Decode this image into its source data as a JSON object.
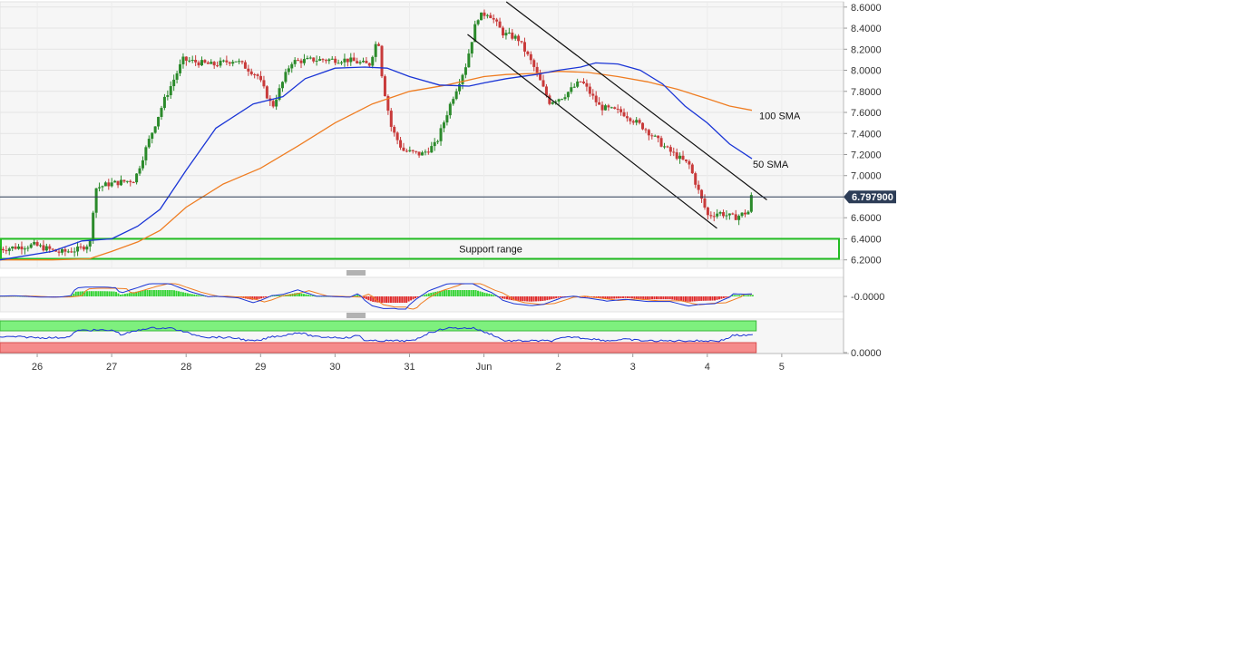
{
  "chart_data": {
    "type": "candlestick",
    "x_axis": {
      "tick_labels": [
        "26",
        "27",
        "28",
        "29",
        "30",
        "31",
        "Jun",
        "2",
        "3",
        "4",
        "5"
      ],
      "tick_day_positions": [
        0,
        1,
        2,
        3,
        4,
        5,
        6,
        7,
        8,
        9,
        10
      ],
      "range_days": [
        -0.5,
        10.83
      ]
    },
    "price_axis": {
      "range": [
        6.12,
        8.65
      ],
      "tick_labels": [
        "8.6000",
        "8.4000",
        "8.2000",
        "8.0000",
        "7.8000",
        "7.6000",
        "7.4000",
        "7.2000",
        "7.0000",
        "6.8000",
        "6.6000",
        "6.4000",
        "6.2000"
      ],
      "tick_values": [
        8.6,
        8.4,
        8.2,
        8.0,
        7.8,
        7.6,
        7.4,
        7.2,
        7.0,
        6.8,
        6.6,
        6.4,
        6.2
      ]
    },
    "current_price": {
      "label": "6.797900",
      "value": 6.7979
    },
    "price_anchors": [
      [
        -0.5,
        6.3
      ],
      [
        0.0,
        6.34
      ],
      [
        0.35,
        6.27
      ],
      [
        0.6,
        6.3
      ],
      [
        0.75,
        6.36
      ],
      [
        0.82,
        6.88
      ],
      [
        1.0,
        6.92
      ],
      [
        1.35,
        6.96
      ],
      [
        1.55,
        7.35
      ],
      [
        1.75,
        7.72
      ],
      [
        2.0,
        8.1
      ],
      [
        2.4,
        8.05
      ],
      [
        2.7,
        8.1
      ],
      [
        3.0,
        7.95
      ],
      [
        3.2,
        7.65
      ],
      [
        3.45,
        8.08
      ],
      [
        3.75,
        8.1
      ],
      [
        4.2,
        8.1
      ],
      [
        4.5,
        8.05
      ],
      [
        4.62,
        8.32
      ],
      [
        4.68,
        7.9
      ],
      [
        4.8,
        7.45
      ],
      [
        4.95,
        7.24
      ],
      [
        5.2,
        7.2
      ],
      [
        5.4,
        7.3
      ],
      [
        5.6,
        7.7
      ],
      [
        5.8,
        8.05
      ],
      [
        5.95,
        8.5
      ],
      [
        6.1,
        8.55
      ],
      [
        6.3,
        8.35
      ],
      [
        6.5,
        8.3
      ],
      [
        6.7,
        8.05
      ],
      [
        6.92,
        7.7
      ],
      [
        7.1,
        7.75
      ],
      [
        7.35,
        7.9
      ],
      [
        7.6,
        7.65
      ],
      [
        7.9,
        7.6
      ],
      [
        8.2,
        7.45
      ],
      [
        8.5,
        7.25
      ],
      [
        8.8,
        7.1
      ],
      [
        8.95,
        6.8
      ],
      [
        9.05,
        6.62
      ],
      [
        9.2,
        6.65
      ],
      [
        9.4,
        6.6
      ],
      [
        9.6,
        6.66
      ],
      [
        9.62,
        6.8
      ]
    ],
    "sma_50": {
      "label": "50 SMA",
      "color": "#1a35d6",
      "points": [
        [
          -0.5,
          6.2
        ],
        [
          0.2,
          6.28
        ],
        [
          0.6,
          6.38
        ],
        [
          1.0,
          6.4
        ],
        [
          1.35,
          6.52
        ],
        [
          1.65,
          6.68
        ],
        [
          2.0,
          7.05
        ],
        [
          2.4,
          7.45
        ],
        [
          2.9,
          7.68
        ],
        [
          3.3,
          7.75
        ],
        [
          3.6,
          7.92
        ],
        [
          4.0,
          8.02
        ],
        [
          4.4,
          8.03
        ],
        [
          4.7,
          8.02
        ],
        [
          5.0,
          7.94
        ],
        [
          5.4,
          7.86
        ],
        [
          5.8,
          7.85
        ],
        [
          6.0,
          7.88
        ],
        [
          6.3,
          7.92
        ],
        [
          6.7,
          7.96
        ],
        [
          7.0,
          8.0
        ],
        [
          7.3,
          8.03
        ],
        [
          7.5,
          8.07
        ],
        [
          7.8,
          8.06
        ],
        [
          8.1,
          8.0
        ],
        [
          8.4,
          7.87
        ],
        [
          8.7,
          7.66
        ],
        [
          9.0,
          7.5
        ],
        [
          9.3,
          7.3
        ],
        [
          9.6,
          7.16
        ]
      ]
    },
    "sma_100": {
      "label": "100 SMA",
      "color": "#ef7d22",
      "points": [
        [
          -0.5,
          6.2
        ],
        [
          0.2,
          6.2
        ],
        [
          0.7,
          6.21
        ],
        [
          1.0,
          6.28
        ],
        [
          1.35,
          6.37
        ],
        [
          1.65,
          6.48
        ],
        [
          2.0,
          6.7
        ],
        [
          2.5,
          6.92
        ],
        [
          3.0,
          7.07
        ],
        [
          3.5,
          7.28
        ],
        [
          4.0,
          7.5
        ],
        [
          4.5,
          7.68
        ],
        [
          5.0,
          7.8
        ],
        [
          5.5,
          7.86
        ],
        [
          6.0,
          7.94
        ],
        [
          6.3,
          7.96
        ],
        [
          6.7,
          7.97
        ],
        [
          7.0,
          7.99
        ],
        [
          7.4,
          7.98
        ],
        [
          7.8,
          7.94
        ],
        [
          8.2,
          7.89
        ],
        [
          8.6,
          7.82
        ],
        [
          9.0,
          7.73
        ],
        [
          9.3,
          7.66
        ],
        [
          9.6,
          7.62
        ]
      ]
    },
    "channel": {
      "upper_line": [
        [
          6.3,
          8.65
        ],
        [
          9.8,
          6.77
        ]
      ],
      "lower_line": [
        [
          5.78,
          8.34
        ],
        [
          9.13,
          6.5
        ]
      ]
    },
    "annotations": {
      "support_range": {
        "label": "Support range",
        "price_low": 6.21,
        "price_high": 6.4,
        "color": "#22bb22"
      },
      "sma_50_label": "50 SMA",
      "sma_100_label": "100 SMA"
    },
    "macd_panel": {
      "tick_label": "-0.0000",
      "up_color": "#34d334",
      "down_color": "#e02b2b"
    },
    "rsi_panel": {
      "tick_label": "0.0000",
      "overbought_color": "#7ef07e",
      "oversold_color": "#f58c8c",
      "line_color": "#1a35d6"
    },
    "candle_colors": {
      "up": "#2b8a2b",
      "down": "#c83a3a"
    },
    "grid": true
  }
}
